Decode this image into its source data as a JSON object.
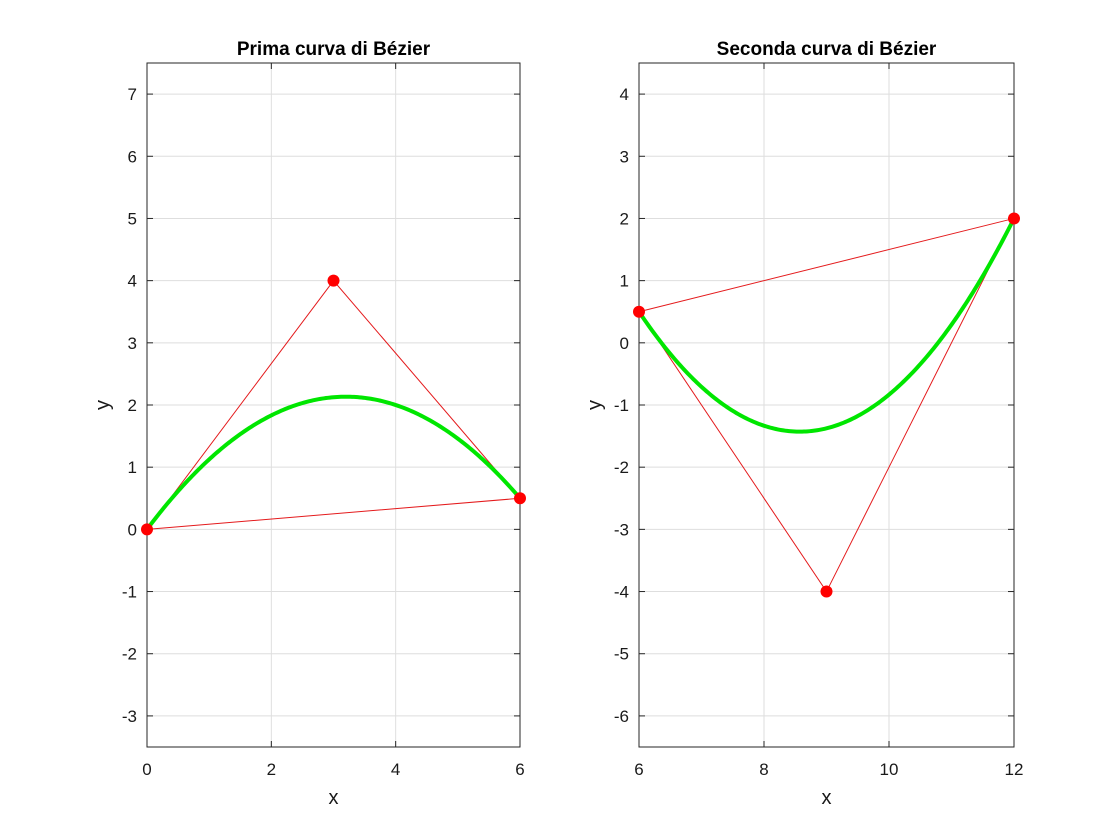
{
  "chart_data": [
    {
      "type": "line",
      "title": "Prima curva di Bézier",
      "xlabel": "x",
      "ylabel": "y",
      "xlim": [
        0,
        6
      ],
      "ylim": [
        -3.5,
        7.5
      ],
      "xticks": [
        0,
        2,
        4,
        6
      ],
      "yticks": [
        -3,
        -2,
        -1,
        0,
        1,
        2,
        3,
        4,
        5,
        6,
        7
      ],
      "grid": true,
      "control_points": [
        [
          0,
          0
        ],
        [
          3,
          4
        ],
        [
          6,
          0.5
        ]
      ],
      "control_polygon_color": "#e41a1c",
      "curve_color": "#00e600",
      "marker_color": "#ff0000"
    },
    {
      "type": "line",
      "title": "Seconda curva di Bézier",
      "xlabel": "x",
      "ylabel": "y",
      "xlim": [
        6,
        12
      ],
      "ylim": [
        -6.5,
        4.5
      ],
      "xticks": [
        6,
        8,
        10,
        12
      ],
      "yticks": [
        -6,
        -5,
        -4,
        -3,
        -2,
        -1,
        0,
        1,
        2,
        3,
        4
      ],
      "grid": true,
      "control_points": [
        [
          6,
          0.5
        ],
        [
          9,
          -4
        ],
        [
          12,
          2
        ]
      ],
      "control_polygon_color": "#e41a1c",
      "curve_color": "#00e600",
      "marker_color": "#ff0000"
    }
  ]
}
